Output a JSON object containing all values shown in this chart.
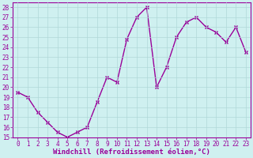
{
  "x": [
    0,
    1,
    2,
    3,
    4,
    5,
    6,
    7,
    8,
    9,
    10,
    11,
    12,
    13,
    14,
    15,
    16,
    17,
    18,
    19,
    20,
    21,
    22,
    23
  ],
  "y": [
    19.5,
    19.0,
    17.5,
    16.5,
    15.5,
    15.0,
    15.5,
    16.0,
    18.5,
    21.0,
    20.5,
    24.8,
    27.0,
    28.0,
    20.0,
    22.0,
    25.0,
    26.5,
    27.0,
    26.0,
    25.5,
    24.5,
    26.0,
    23.5
  ],
  "line_color": "#990099",
  "marker": "x",
  "marker_color": "#990099",
  "marker_size": 3,
  "line_width": 1.0,
  "xlabel": "Windchill (Refroidissement éolien,°C)",
  "xlim": [
    -0.5,
    23.5
  ],
  "ylim": [
    15,
    28.5
  ],
  "yticks": [
    15,
    16,
    17,
    18,
    19,
    20,
    21,
    22,
    23,
    24,
    25,
    26,
    27,
    28
  ],
  "xticks": [
    0,
    1,
    2,
    3,
    4,
    5,
    6,
    7,
    8,
    9,
    10,
    11,
    12,
    13,
    14,
    15,
    16,
    17,
    18,
    19,
    20,
    21,
    22,
    23
  ],
  "bg_color": "#cff0f0",
  "grid_color": "#b0d8d8",
  "tick_color": "#990099",
  "label_color": "#990099",
  "tick_fontsize": 5.5,
  "xlabel_fontsize": 6.5,
  "fig_width": 3.2,
  "fig_height": 2.0,
  "dpi": 100
}
